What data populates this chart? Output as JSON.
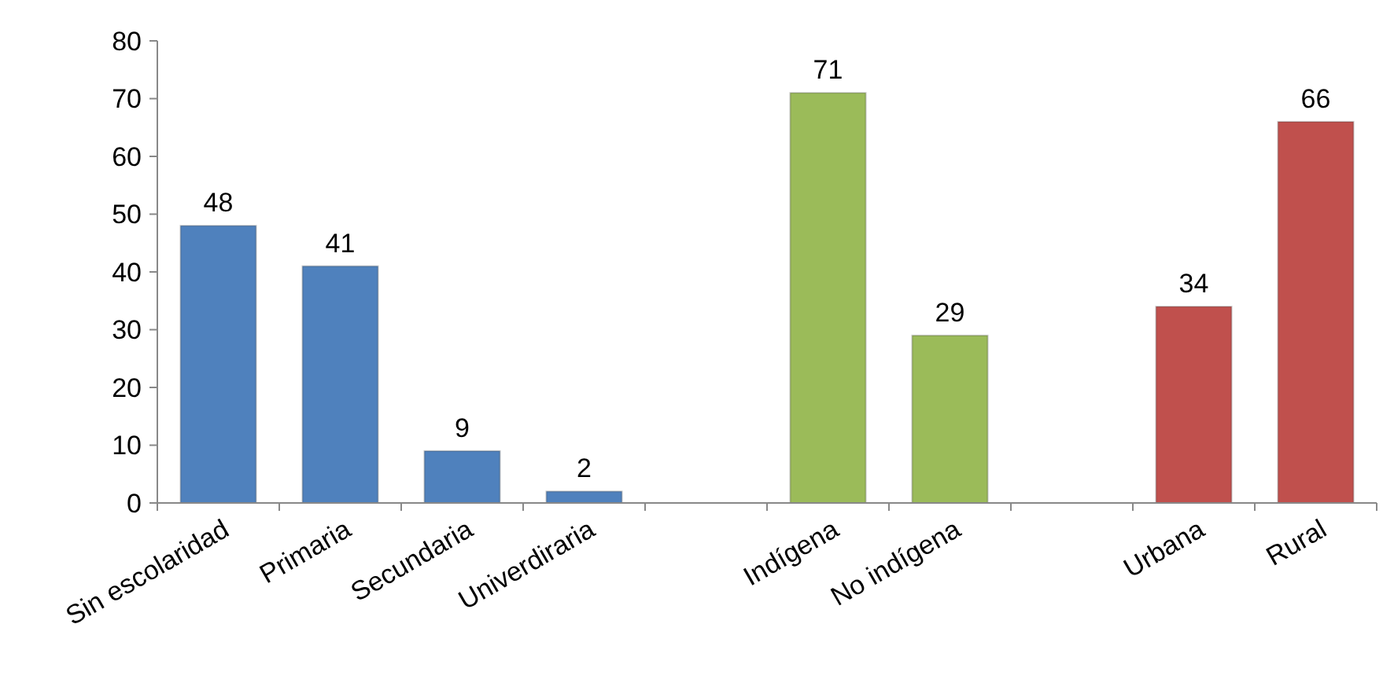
{
  "chart_data": {
    "type": "bar",
    "categories": [
      "Sin escolaridad",
      "Primaria",
      "Secundaria",
      "Univerdiraria",
      null,
      "Indígena",
      "No indígena",
      null,
      "Urbana",
      "Rural"
    ],
    "values": [
      48,
      41,
      9,
      2,
      null,
      71,
      29,
      null,
      34,
      66
    ],
    "colors": [
      "#4f81bd",
      "#4f81bd",
      "#4f81bd",
      "#4f81bd",
      null,
      "#9bbb59",
      "#9bbb59",
      null,
      "#c0504d",
      "#c0504d"
    ],
    "ylim": [
      0,
      80
    ],
    "yticks": [
      0,
      10,
      20,
      30,
      40,
      50,
      60,
      70,
      80
    ],
    "data_labels": true,
    "grid": false
  }
}
